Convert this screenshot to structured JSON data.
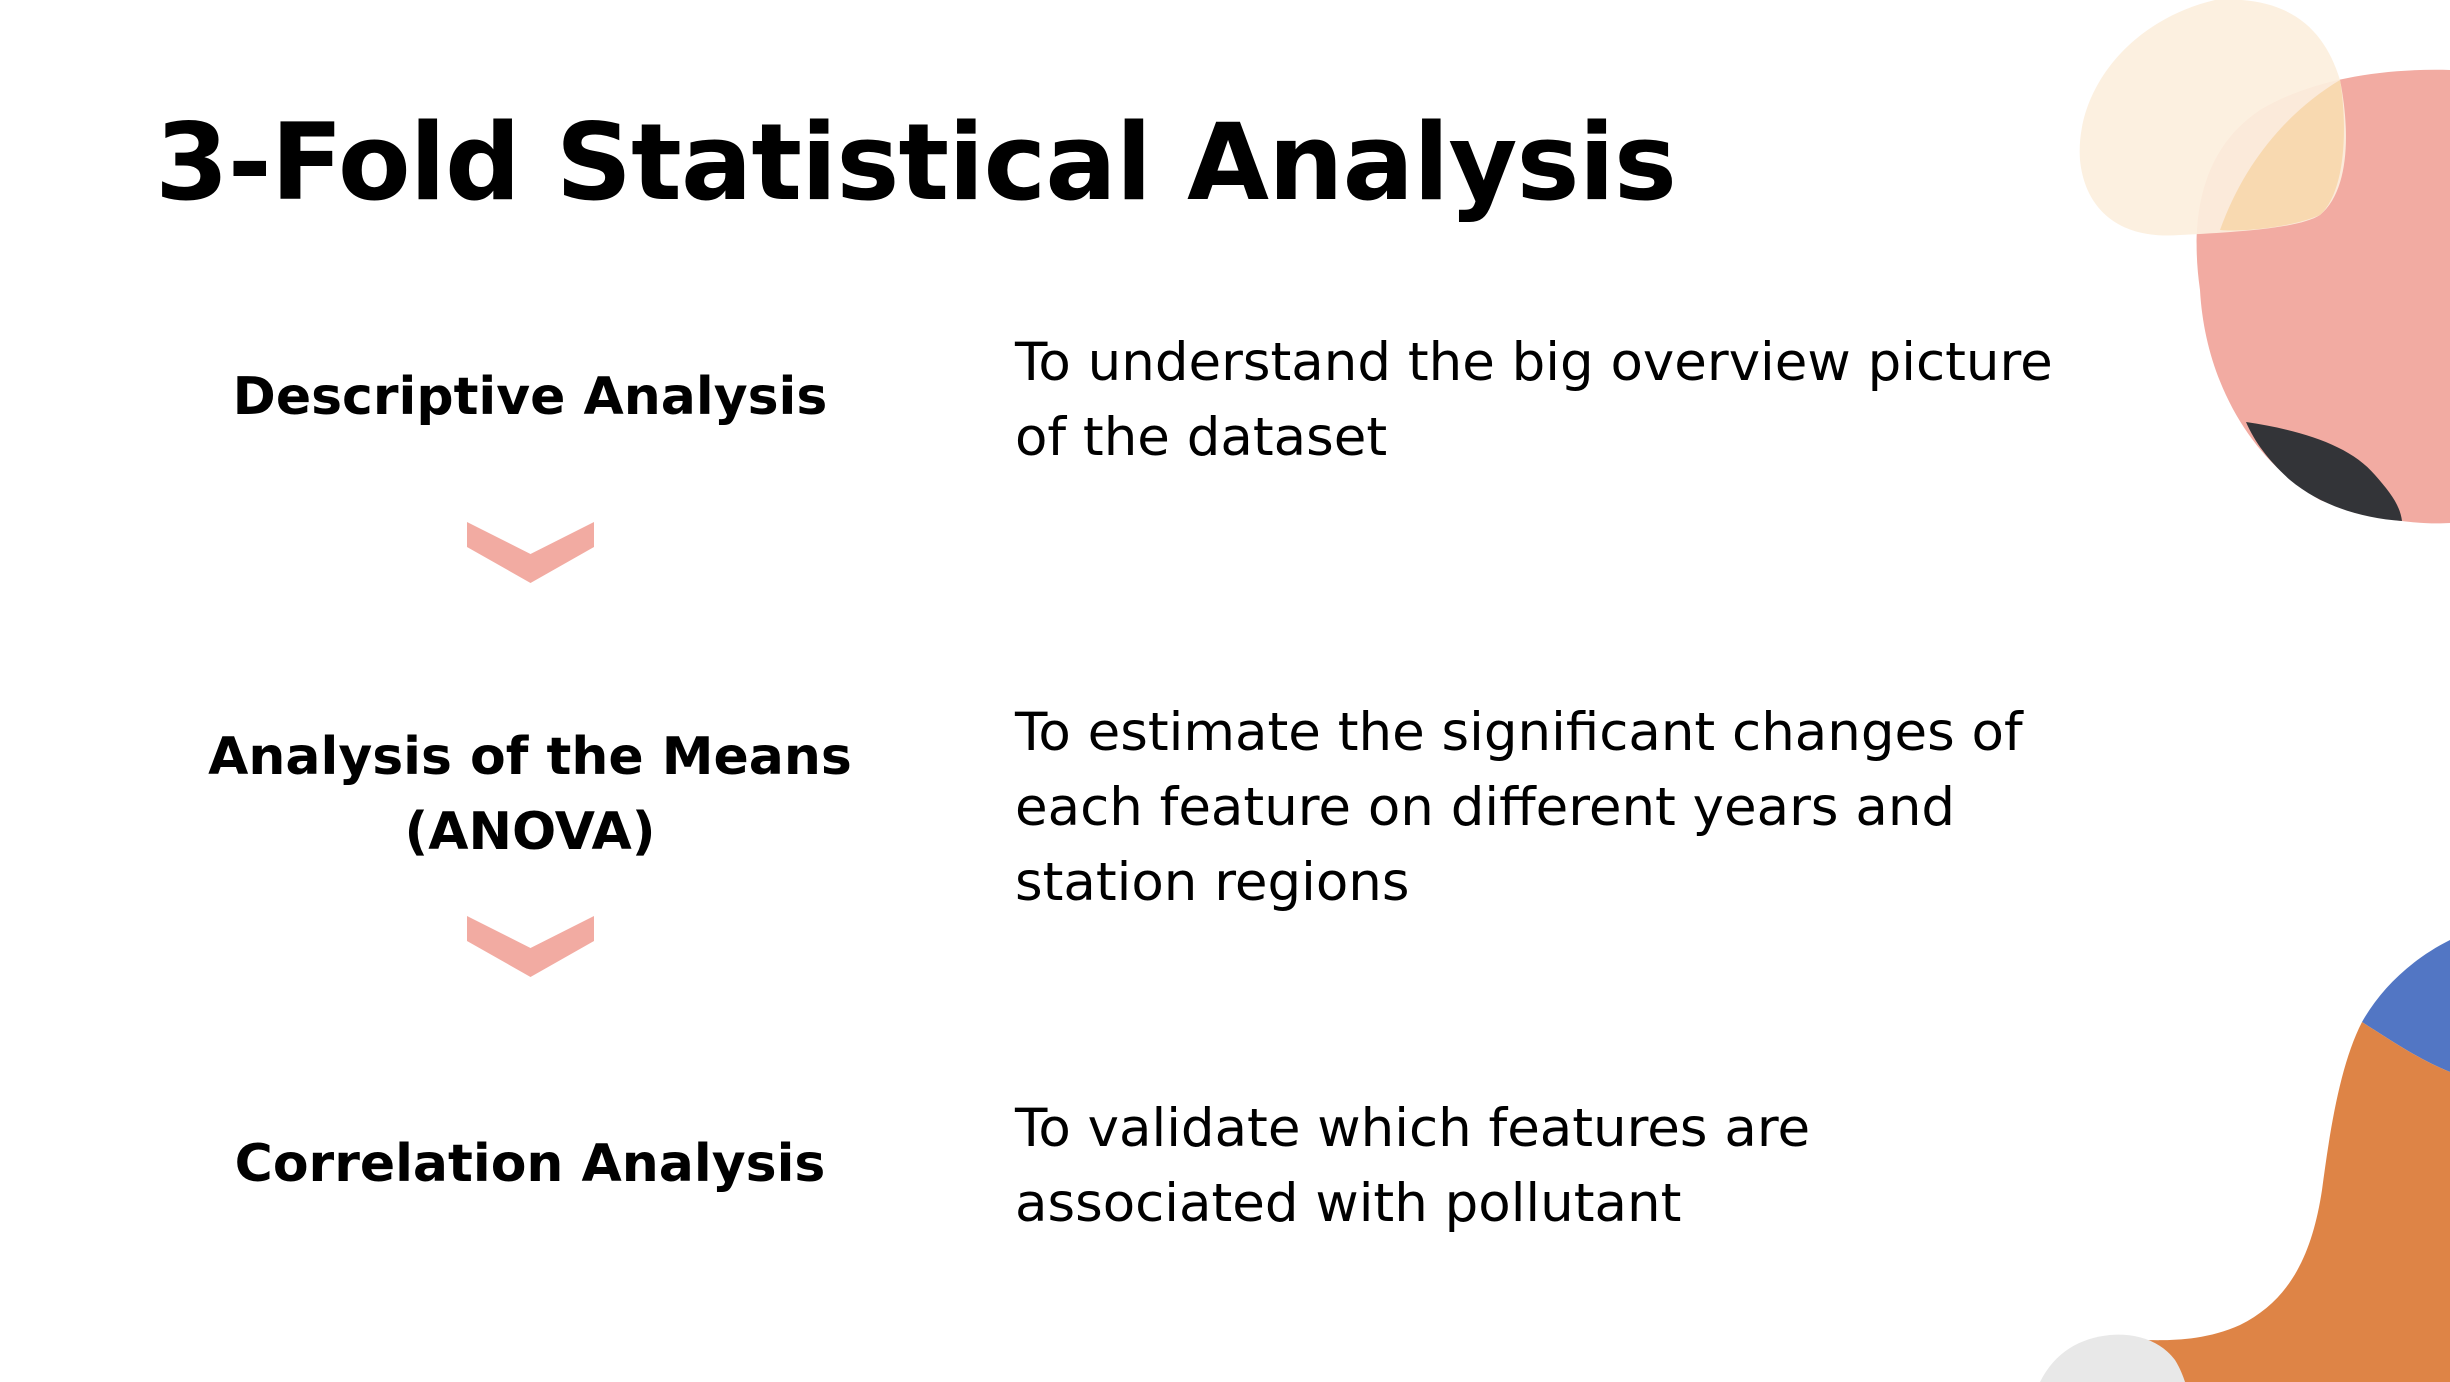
{
  "slide": {
    "title": "3-Fold Statistical Analysis",
    "steps": [
      {
        "label": "Descriptive Analysis",
        "description": "To understand the big overview picture of the dataset"
      },
      {
        "label": "Analysis of the Means (ANOVA)",
        "description": "To estimate the significant changes of each feature on different years and station regions"
      },
      {
        "label": "Correlation Analysis",
        "description": "To validate which features are associated with pollutant"
      }
    ],
    "connector_icon": "chevron-down-icon"
  },
  "colors": {
    "accent_pink": "#F2ABA2",
    "cream": "#FCEFDE",
    "peach": "#F8D9B0",
    "dark": "#333438",
    "blue": "#5276C4",
    "orange": "#DE8446",
    "light_gray": "#E8E8E8",
    "text": "#000000",
    "background": "#FFFFFF"
  }
}
